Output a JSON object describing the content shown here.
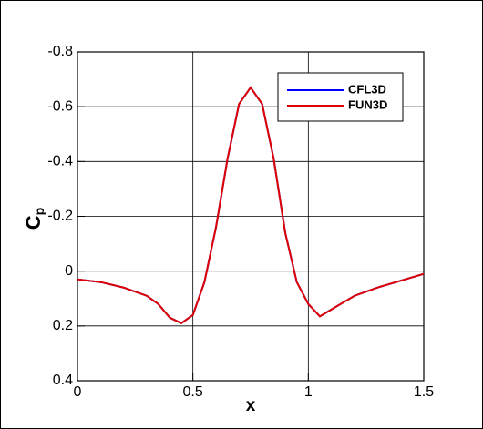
{
  "chart_data": {
    "type": "line",
    "xlabel": "x",
    "ylabel": [
      "C",
      "p"
    ],
    "x": [
      0,
      0.1,
      0.2,
      0.3,
      0.35,
      0.4,
      0.45,
      0.5,
      0.55,
      0.6,
      0.65,
      0.7,
      0.75,
      0.8,
      0.85,
      0.9,
      0.95,
      1.0,
      1.05,
      1.1,
      1.2,
      1.3,
      1.4,
      1.5
    ],
    "series": [
      {
        "name": "CFL3D",
        "color": "#0000ff",
        "values": [
          0.03,
          0.04,
          0.06,
          0.09,
          0.12,
          0.17,
          0.19,
          0.16,
          0.04,
          -0.16,
          -0.41,
          -0.61,
          -0.67,
          -0.61,
          -0.41,
          -0.14,
          0.04,
          0.12,
          0.165,
          0.14,
          0.09,
          0.06,
          0.035,
          0.01
        ]
      },
      {
        "name": "FUN3D",
        "color": "#e00000",
        "values": [
          0.03,
          0.04,
          0.06,
          0.09,
          0.12,
          0.17,
          0.19,
          0.16,
          0.04,
          -0.16,
          -0.41,
          -0.61,
          -0.67,
          -0.61,
          -0.41,
          -0.14,
          0.04,
          0.12,
          0.165,
          0.14,
          0.09,
          0.06,
          0.035,
          0.01
        ]
      }
    ],
    "xlim": [
      0,
      1.5
    ],
    "xticks": [
      0,
      0.5,
      1,
      1.5
    ],
    "ylim": [
      0.4,
      -0.8
    ],
    "yticks": [
      0.4,
      0.2,
      0,
      -0.2,
      -0.4,
      -0.6,
      -0.8
    ],
    "grid": true,
    "legend": "upper right"
  }
}
